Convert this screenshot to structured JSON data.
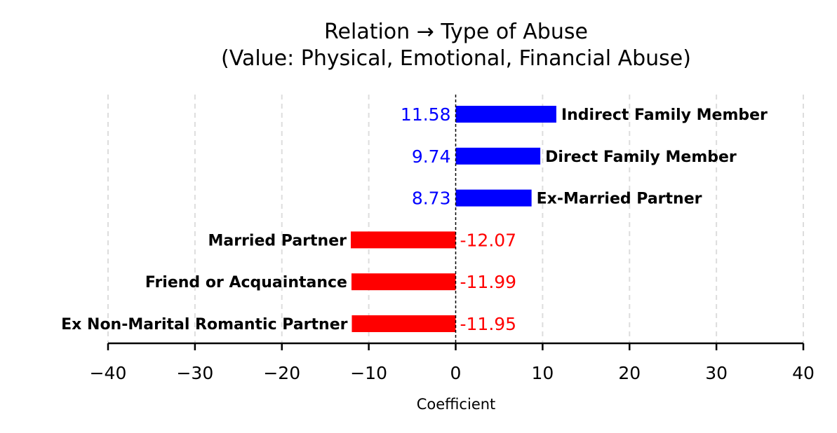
{
  "chart_data": {
    "type": "bar",
    "orientation": "horizontal",
    "title": "Relation → Type of Abuse",
    "subtitle": "(Value: Physical, Emotional, Financial Abuse)",
    "xlabel": "Coefficient",
    "xlim": [
      -40,
      40
    ],
    "xticks": [
      -40,
      -30,
      -20,
      -10,
      0,
      10,
      20,
      30,
      40
    ],
    "xtick_labels": [
      "−40",
      "−30",
      "−20",
      "−10",
      "0",
      "10",
      "20",
      "30",
      "40"
    ],
    "grid": "vertical dashed",
    "categories": [
      "Indirect Family Member",
      "Direct Family Member",
      "Ex-Married Partner",
      "Married Partner",
      "Friend or Acquaintance",
      "Ex Non-Marital Romantic Partner"
    ],
    "values": [
      11.58,
      9.74,
      8.73,
      -12.07,
      -11.99,
      -11.95
    ],
    "value_labels": [
      "11.58",
      "9.74",
      "8.73",
      "-12.07",
      "-11.99",
      "-11.95"
    ],
    "colors": {
      "positive": "#0000ff",
      "negative": "#ff0000",
      "grid": "#dddddd",
      "zero_line": "#000000"
    }
  }
}
